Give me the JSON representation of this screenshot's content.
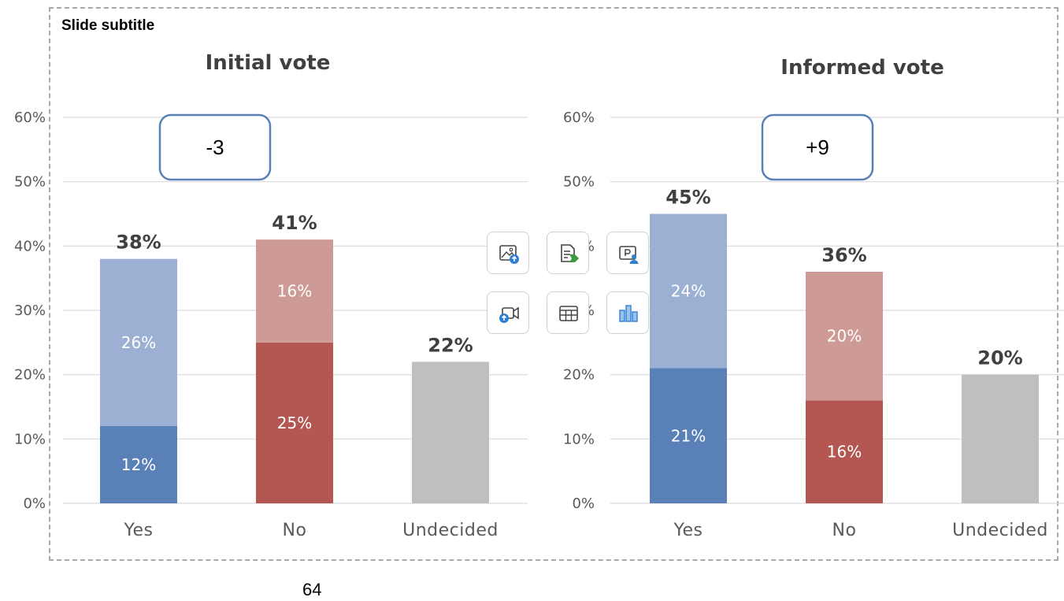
{
  "slide": {
    "subtitle": "Slide subtitle",
    "page_number": "64"
  },
  "chart_data": [
    {
      "type": "bar",
      "stacked": true,
      "title": "Initial vote",
      "categories": [
        "Yes",
        "No",
        "Undecided"
      ],
      "series": [
        {
          "values": [
            12,
            25,
            22
          ],
          "labels": [
            "12%",
            "25%",
            ""
          ]
        },
        {
          "values": [
            26,
            16,
            0
          ],
          "labels": [
            "26%",
            "16%",
            ""
          ]
        }
      ],
      "totals": [
        38,
        41,
        22
      ],
      "total_labels": [
        "38%",
        "41%",
        "22%"
      ],
      "ylim": [
        0,
        60
      ],
      "yticks": [
        "0%",
        "10%",
        "20%",
        "30%",
        "40%",
        "50%",
        "60%"
      ],
      "grid": true,
      "delta_label": "-3",
      "colors": {
        "Yes": [
          "#5a80b8",
          "#9bb0d3"
        ],
        "No": [
          "#b45752",
          "#ce9a96"
        ],
        "Undecided": [
          "#bfbfbf",
          "#bfbfbf"
        ]
      }
    },
    {
      "type": "bar",
      "stacked": true,
      "title": "Informed vote",
      "categories": [
        "Yes",
        "No",
        "Undecided"
      ],
      "series": [
        {
          "values": [
            21,
            16,
            20
          ],
          "labels": [
            "21%",
            "16%",
            ""
          ]
        },
        {
          "values": [
            24,
            20,
            0
          ],
          "labels": [
            "24%",
            "20%",
            ""
          ]
        }
      ],
      "totals": [
        45,
        36,
        20
      ],
      "total_labels": [
        "45%",
        "36%",
        "20%"
      ],
      "ylim": [
        0,
        60
      ],
      "yticks": [
        "0%",
        "10%",
        "20%",
        "30%",
        "40%",
        "50%",
        "60%"
      ],
      "grid": true,
      "delta_label": "+9",
      "colors": {
        "Yes": [
          "#5a80b8",
          "#9bb0d3"
        ],
        "No": [
          "#b45752",
          "#ce9a96"
        ],
        "Undecided": [
          "#bfbfbf",
          "#bfbfbf"
        ]
      }
    }
  ],
  "toolbar": {
    "buttons": [
      {
        "icon": "insert-picture-icon"
      },
      {
        "icon": "insert-text-icon"
      },
      {
        "icon": "insert-cameo-icon"
      },
      {
        "icon": "insert-video-icon"
      },
      {
        "icon": "insert-table-icon"
      },
      {
        "icon": "insert-chart-icon"
      }
    ]
  }
}
